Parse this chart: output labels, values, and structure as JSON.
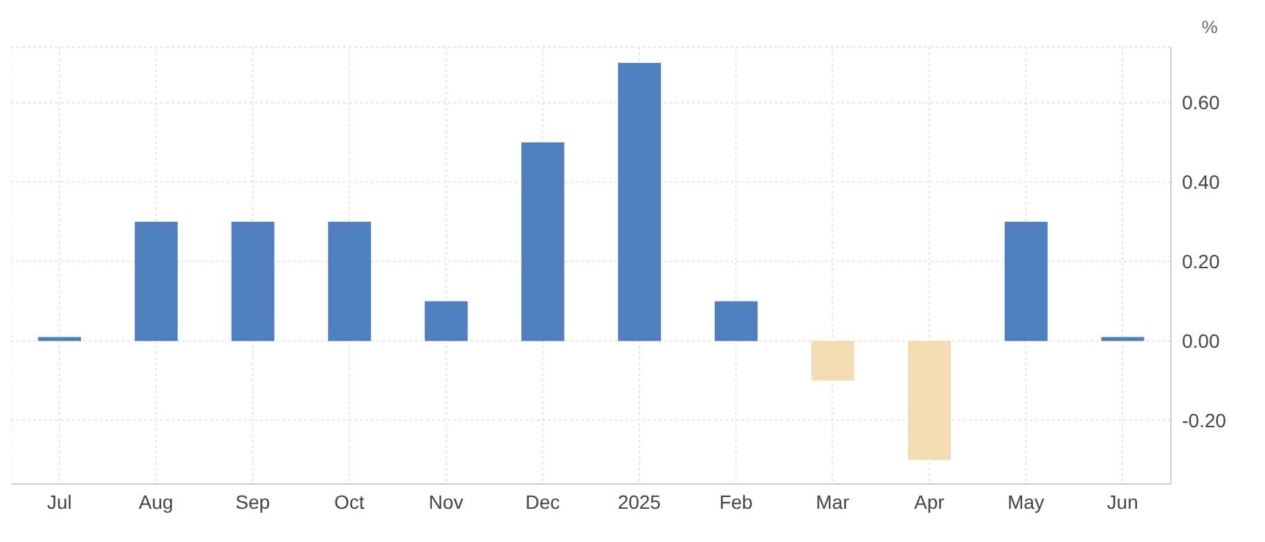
{
  "chart_data": {
    "type": "bar",
    "ylabel": "%",
    "categories": [
      "Jul",
      "Aug",
      "Sep",
      "Oct",
      "Nov",
      "Dec",
      "2025",
      "Feb",
      "Mar",
      "Apr",
      "May",
      "Jun"
    ],
    "values": [
      0.01,
      0.3,
      0.3,
      0.3,
      0.1,
      0.5,
      0.7,
      0.1,
      -0.1,
      -0.3,
      0.3,
      0.01
    ],
    "colors": [
      "#4f7fbd",
      "#4f7fbd",
      "#4f7fbd",
      "#4f7fbd",
      "#4f7fbd",
      "#4f7fbd",
      "#4f7fbd",
      "#4f7fbd",
      "#f2dcb4",
      "#f2dcb4",
      "#4f7fbd",
      "#4f7fbd"
    ],
    "ylim": [
      -0.36,
      0.74
    ],
    "yticks": [
      {
        "value": -0.2,
        "label": "-0.20"
      },
      {
        "value": 0,
        "label": "0.00"
      },
      {
        "value": 0.2,
        "label": "0.20"
      },
      {
        "value": 0.4,
        "label": "0.40"
      },
      {
        "value": 0.6,
        "label": "0.60"
      }
    ],
    "grid": true
  }
}
